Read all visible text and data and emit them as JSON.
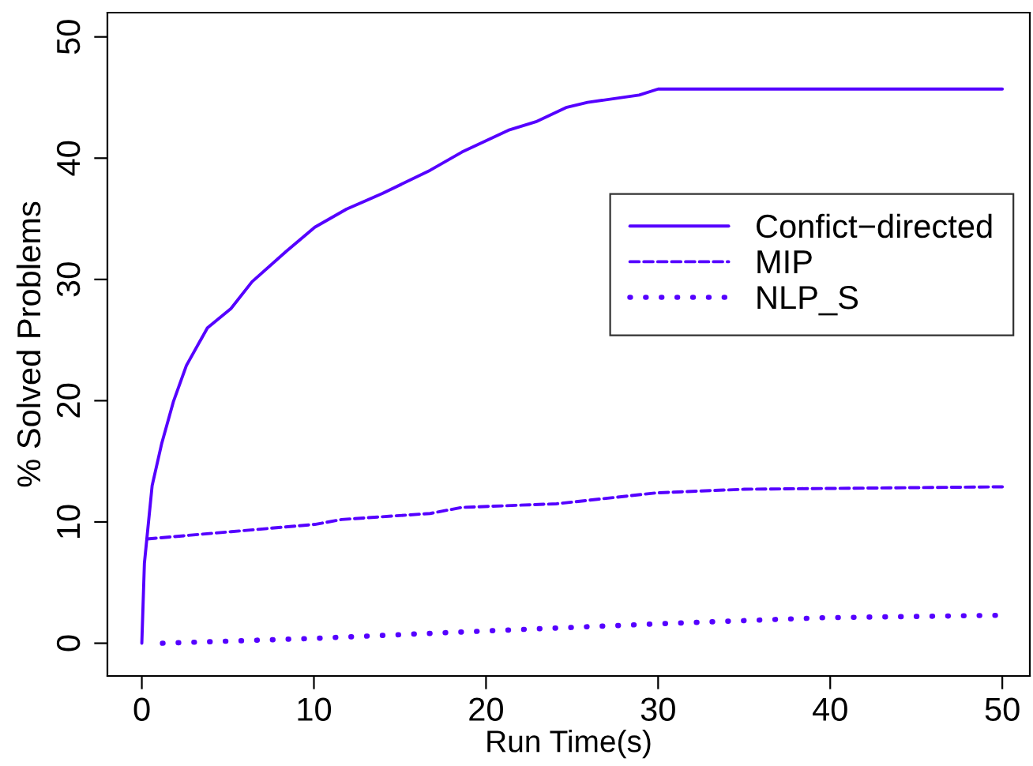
{
  "chart_data": {
    "type": "line",
    "xlabel": "Run Time(s)",
    "ylabel": "% Solved Problems",
    "xlim": [
      -2,
      51.6
    ],
    "ylim": [
      -2.7,
      52
    ],
    "xticks": [
      0,
      10,
      20,
      30,
      40,
      50
    ],
    "yticks": [
      0,
      10,
      20,
      30,
      40,
      50
    ],
    "grid": false,
    "legend": "right",
    "series": [
      {
        "name": "Confict−directed",
        "color": "#5500ff",
        "line_style": "solid",
        "x": [
          0,
          0.15,
          0.6,
          1.16,
          1.83,
          2.59,
          3.81,
          5.18,
          6.4,
          8.38,
          10.05,
          11.9,
          14.0,
          16.75,
          18.6,
          21.3,
          22.9,
          24.7,
          25.9,
          28.9,
          30.0,
          50
        ],
        "values": [
          0,
          6.6,
          13.0,
          16.5,
          19.9,
          22.9,
          26.0,
          27.6,
          29.8,
          32.3,
          34.3,
          35.8,
          37.1,
          39.0,
          40.5,
          42.3,
          43.0,
          44.2,
          44.6,
          45.2,
          45.7,
          45.7
        ]
      },
      {
        "name": "MIP",
        "color": "#5500ff",
        "line_style": "dashed",
        "x": [
          0.3,
          5.2,
          10.05,
          11.6,
          16.75,
          18.6,
          24.1,
          29.9,
          35.0,
          42.6,
          50
        ],
        "values": [
          8.6,
          9.2,
          9.8,
          10.2,
          10.7,
          11.2,
          11.5,
          12.4,
          12.7,
          12.8,
          12.9
        ]
      },
      {
        "name": "NLP_S",
        "color": "#5500ff",
        "line_style": "dotted",
        "x": [
          1.2,
          10,
          19.8,
          30,
          39.5,
          49.6
        ],
        "values": [
          0,
          0.4,
          1.0,
          1.6,
          2.1,
          2.3
        ]
      }
    ]
  }
}
